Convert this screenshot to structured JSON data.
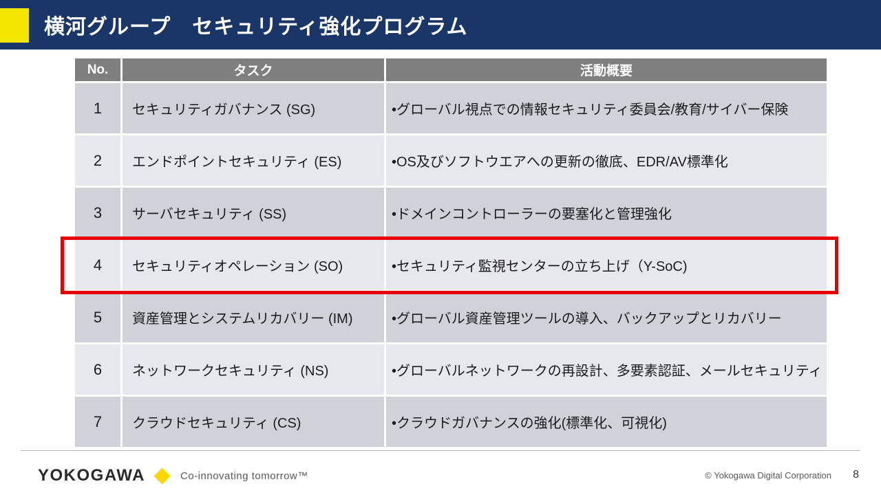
{
  "slide": {
    "title": "横河グループ　セキュリティ強化プログラム",
    "page_number": "8",
    "copyright": "© Yokogawa Digital Corporation"
  },
  "logo": {
    "brand": "YOKOGAWA",
    "tagline": "Co-innovating tomorrow™",
    "diamond_icon": "yellow-diamond"
  },
  "colors": {
    "header_navy": "#1a3668",
    "accent_yellow": "#f3e600",
    "table_header_gray": "#7f7f7f",
    "row_band_dark": "#cfd2d9",
    "row_band_light": "#e6e8ee",
    "highlight_red": "#e60000",
    "logo_diamond_gold": "#ffd600"
  },
  "table": {
    "columns": [
      "No.",
      "タスク",
      "活動概要"
    ],
    "rows": [
      {
        "no": "1",
        "task": "セキュリティガバナンス (SG)",
        "summary": "•グローバル視点での情報セキュリティ委員会/教育/サイバー保険",
        "highlighted": false
      },
      {
        "no": "2",
        "task": "エンドポイントセキュリティ (ES)",
        "summary": "•OS及びソフトウエアへの更新の徹底、EDR/AV標準化",
        "highlighted": false
      },
      {
        "no": "3",
        "task": "サーバセキュリティ (SS)",
        "summary": "•ドメインコントローラーの要塞化と管理強化",
        "highlighted": false
      },
      {
        "no": "4",
        "task": "セキュリティオペレーション (SO)",
        "summary": "•セキュリティ監視センターの立ち上げ（Y-SoC)",
        "highlighted": true
      },
      {
        "no": "5",
        "task": "資産管理とシステムリカバリー (IM)",
        "summary": "•グローバル資産管理ツールの導入、バックアップとリカバリー",
        "highlighted": false
      },
      {
        "no": "6",
        "task": "ネットワークセキュリティ (NS)",
        "summary": "•グローバルネットワークの再設計、多要素認証、メールセキュリティ",
        "highlighted": false
      },
      {
        "no": "7",
        "task": "クラウドセキュリティ (CS)",
        "summary": "•クラウドガバナンスの強化(標準化、可視化)",
        "highlighted": false
      }
    ]
  }
}
